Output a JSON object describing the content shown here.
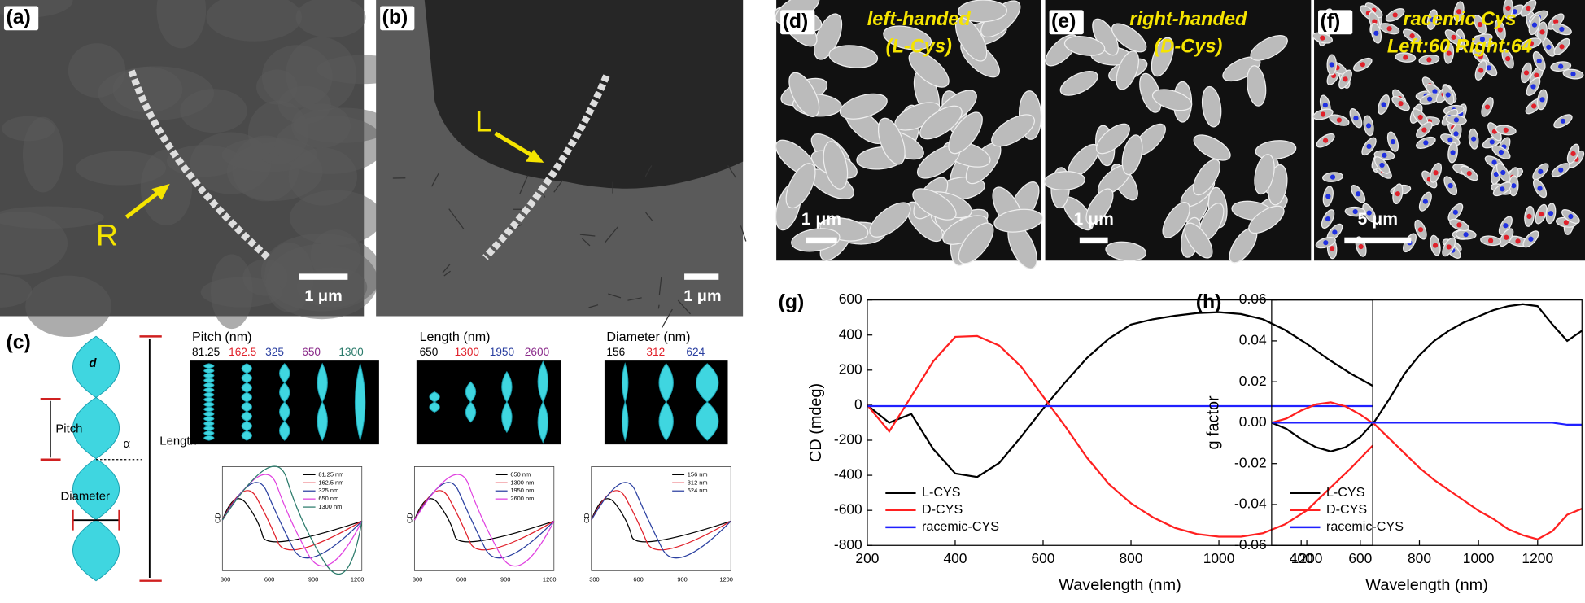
{
  "panels": {
    "a": {
      "label": "(a)",
      "annotation": "R",
      "scale_bar": "1 μm"
    },
    "b": {
      "label": "(b)",
      "annotation": "L",
      "scale_bar": "1 μm"
    },
    "c": {
      "label": "(c)",
      "schematic_labels": [
        "d",
        "Pitch",
        "α",
        "Diameter",
        "Length"
      ],
      "groups": [
        {
          "title": "Pitch (nm)",
          "values": [
            "81.25",
            "162.5",
            "325",
            "650",
            "1300"
          ],
          "colors": [
            "#000000",
            "#e0202a",
            "#2a3fa0",
            "#8a2a8a",
            "#2a7a6a"
          ]
        },
        {
          "title": "Length (nm)",
          "values": [
            "650",
            "1300",
            "1950",
            "2600"
          ],
          "colors": [
            "#000000",
            "#e0202a",
            "#2a3fa0",
            "#8a2a8a"
          ]
        },
        {
          "title": "Diameter (nm)",
          "values": [
            "156",
            "312",
            "624"
          ],
          "colors": [
            "#000000",
            "#e0202a",
            "#2a3fa0"
          ]
        }
      ],
      "spectra": [
        {
          "ylabel": "CD",
          "legend": [
            "81.25 nm",
            "162.5 nm",
            "325  nm",
            "650  nm",
            "1300 nm"
          ],
          "xticks": [
            300,
            600,
            900,
            1200
          ]
        },
        {
          "ylabel": "CD",
          "legend": [
            "650 nm",
            "1300 nm",
            "1950 nm",
            "2600 nm"
          ],
          "xticks": [
            300,
            600,
            900,
            1200
          ]
        },
        {
          "ylabel": "CD",
          "legend": [
            "156 nm",
            "312 nm",
            "624 nm"
          ],
          "xticks": [
            300,
            600,
            900,
            1200
          ]
        }
      ]
    },
    "d": {
      "label": "(d)",
      "caption": [
        "left-handed",
        "(L-Cys)"
      ],
      "scale_bar": "1 μm"
    },
    "e": {
      "label": "(e)",
      "caption": [
        "right-handed",
        "(D-Cys)"
      ],
      "scale_bar": "1 μm"
    },
    "f": {
      "label": "(f)",
      "caption": [
        "racemic Cys",
        "Left:60 Right:64"
      ],
      "scale_bar": "5 μm"
    }
  },
  "chart_data": [
    {
      "type": "line",
      "label": "(g)",
      "x_label": "Wavelength (nm)",
      "y_label": "CD (mdeg)",
      "x": [
        200,
        250,
        300,
        350,
        400,
        450,
        500,
        550,
        600,
        650,
        700,
        750,
        800,
        850,
        900,
        950,
        1000,
        1050,
        1100,
        1150,
        1200,
        1250,
        1300,
        1350
      ],
      "xlim": [
        200,
        1350
      ],
      "ylim": [
        -800,
        600
      ],
      "xticks": [
        200,
        400,
        600,
        800,
        1000,
        1200
      ],
      "yticks": [
        -800,
        -600,
        -400,
        -200,
        0,
        200,
        400,
        600
      ],
      "legend_position": "lower left",
      "series": [
        {
          "name": "L-CYS",
          "color": "#000000",
          "values": [
            0,
            -100,
            -50,
            -250,
            -390,
            -410,
            -330,
            -180,
            -20,
            130,
            270,
            380,
            460,
            490,
            510,
            525,
            530,
            520,
            490,
            430,
            350,
            260,
            180,
            110
          ]
        },
        {
          "name": "D-CYS",
          "color": "#ff2020",
          "values": [
            0,
            -150,
            50,
            250,
            390,
            395,
            340,
            220,
            50,
            -120,
            -300,
            -450,
            -560,
            -640,
            -700,
            -735,
            -750,
            -750,
            -730,
            -680,
            -600,
            -480,
            -360,
            -230
          ]
        },
        {
          "name": "racemic-CYS",
          "color": "#2020ff",
          "values": [
            -5,
            -5,
            -5,
            -5,
            -5,
            -5,
            -5,
            -5,
            -5,
            -5,
            -5,
            -5,
            -5,
            -5,
            -5,
            -5,
            -5,
            -5,
            -5,
            -5,
            -5,
            -5,
            -5,
            -5
          ]
        }
      ]
    },
    {
      "type": "line",
      "label": "(h)",
      "x_label": "Wavelength (nm)",
      "y_label": "g factor",
      "x": [
        300,
        350,
        400,
        450,
        500,
        550,
        600,
        650,
        700,
        750,
        800,
        850,
        900,
        950,
        1000,
        1050,
        1100,
        1150,
        1200,
        1250,
        1300,
        1350
      ],
      "xlim": [
        300,
        1350
      ],
      "ylim": [
        -0.06,
        0.06
      ],
      "xticks": [
        400,
        600,
        800,
        1000,
        1200
      ],
      "yticks": [
        -0.06,
        -0.04,
        -0.02,
        {
          "value": 0,
          "label": "0.00"
        },
        0.02,
        0.04,
        0.06
      ],
      "legend_position": "lower left",
      "series": [
        {
          "name": "L-CYS",
          "color": "#000000",
          "values": [
            0,
            -0.003,
            -0.008,
            -0.012,
            -0.014,
            -0.012,
            -0.007,
            0.001,
            0.012,
            0.024,
            0.033,
            0.04,
            0.045,
            0.049,
            0.052,
            0.055,
            0.057,
            0.058,
            0.057,
            0.048,
            0.04,
            0.045
          ]
        },
        {
          "name": "D-CYS",
          "color": "#ff2020",
          "values": [
            0,
            0.002,
            0.006,
            0.009,
            0.01,
            0.008,
            0.004,
            -0.001,
            -0.008,
            -0.015,
            -0.022,
            -0.028,
            -0.033,
            -0.038,
            -0.043,
            -0.047,
            -0.052,
            -0.055,
            -0.057,
            -0.053,
            -0.045,
            -0.042
          ]
        },
        {
          "name": "racemic-CYS",
          "color": "#2020ff",
          "values": [
            0,
            0,
            0,
            0,
            0,
            0,
            0,
            0,
            0,
            0,
            0,
            0,
            0,
            0,
            0,
            0,
            0,
            0,
            0,
            0,
            -0.001,
            -0.001
          ]
        }
      ]
    }
  ]
}
